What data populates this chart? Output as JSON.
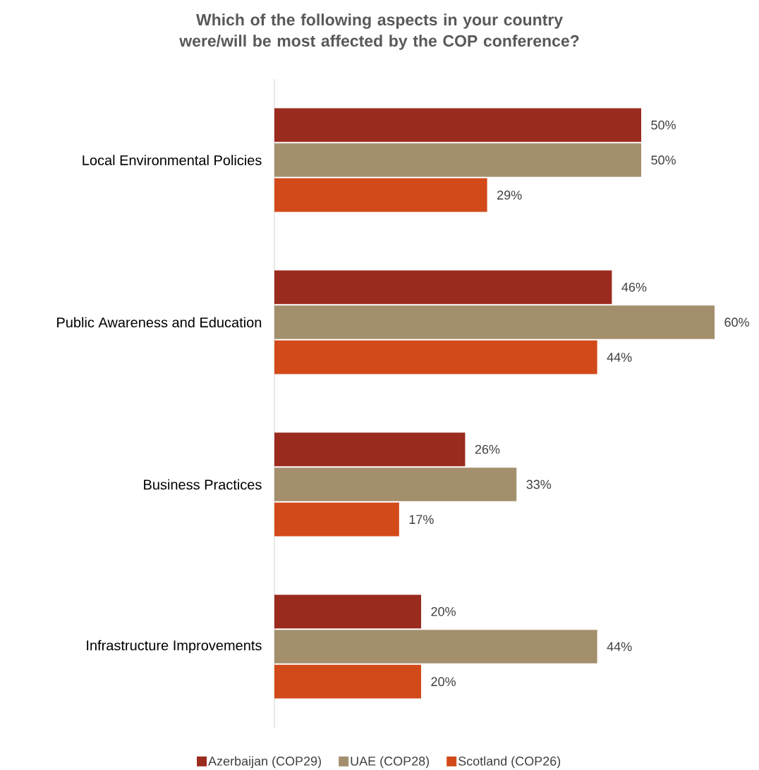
{
  "chart_data": {
    "type": "bar",
    "orientation": "horizontal",
    "title": "Which of the following aspects in your country were/will be most affected by the COP conference?",
    "categories": [
      "Local Environmental Policies",
      "Public Awareness and Education",
      "Business Practices",
      "Infrastructure Improvements"
    ],
    "series": [
      {
        "name": "Azerbaijan (COP29)",
        "color": "#9a2b1f",
        "values": [
          50,
          46,
          26,
          20
        ],
        "value_labels": [
          "50%",
          "46%",
          "26%",
          "20%"
        ]
      },
      {
        "name": "UAE (COP28)",
        "color": "#a48f6d",
        "values": [
          50,
          60,
          33,
          44
        ],
        "value_labels": [
          "50%",
          "60%",
          "33%",
          "44%"
        ]
      },
      {
        "name": "Scotland (COP26)",
        "color": "#d24a1a",
        "values": [
          29,
          44,
          17,
          20
        ],
        "value_labels": [
          "29%",
          "44%",
          "17%",
          "20%"
        ]
      }
    ],
    "xlim": [
      0,
      60
    ],
    "legend": "bottom"
  }
}
